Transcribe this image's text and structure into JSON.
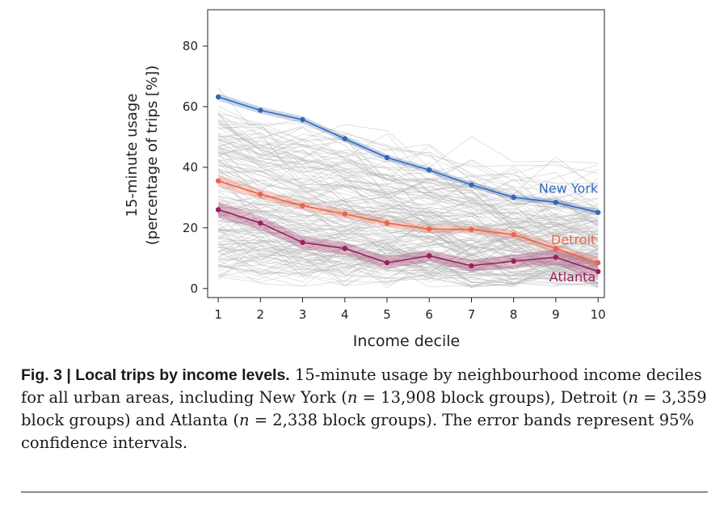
{
  "chart_data": {
    "type": "line",
    "xlabel": "Income decile",
    "ylabel_line1": "15-minute usage",
    "ylabel_line2": "(percentage of trips [%])",
    "xlim": [
      0.75,
      10.15
    ],
    "ylim": [
      -3,
      92
    ],
    "x_ticks": [
      1,
      2,
      3,
      4,
      5,
      6,
      7,
      8,
      9,
      10
    ],
    "y_ticks": [
      0,
      20,
      40,
      60,
      80
    ],
    "grid": false,
    "background_lines": "grey lines for all urban areas",
    "series": [
      {
        "name": "New York",
        "color": "#3569b6",
        "x": [
          1,
          2,
          3,
          4,
          5,
          6,
          7,
          8,
          9,
          10
        ],
        "values": [
          63.2,
          58.8,
          55.7,
          49.4,
          43.2,
          39.1,
          34.2,
          30.1,
          28.4,
          25.1
        ],
        "ci_halfwidth": [
          1.2,
          1.1,
          1.1,
          1.0,
          1.0,
          1.0,
          1.0,
          1.0,
          1.0,
          1.1
        ]
      },
      {
        "name": "Detroit",
        "color": "#e8654b",
        "x": [
          1,
          2,
          3,
          4,
          5,
          6,
          7,
          8,
          9,
          10
        ],
        "values": [
          35.5,
          31.1,
          27.3,
          24.6,
          21.6,
          19.6,
          19.5,
          17.8,
          13.2,
          8.5
        ],
        "ci_halfwidth": [
          2.0,
          1.6,
          1.5,
          1.4,
          1.4,
          1.4,
          1.4,
          1.5,
          1.6,
          1.8
        ]
      },
      {
        "name": "Atlanta",
        "color": "#9b1f5c",
        "x": [
          1,
          2,
          3,
          4,
          5,
          6,
          7,
          8,
          9,
          10
        ],
        "values": [
          26.0,
          21.6,
          15.2,
          13.2,
          8.5,
          10.8,
          7.5,
          9.0,
          10.3,
          5.6
        ],
        "ci_halfwidth": [
          2.5,
          2.3,
          2.2,
          2.1,
          2.0,
          2.0,
          2.0,
          2.2,
          2.5,
          2.8
        ]
      }
    ]
  },
  "caption": {
    "label": "Fig. 3 | Local trips by income levels.",
    "text_1": " 15-minute usage by neighbourhood income deciles for all urban areas, including New York (",
    "n": "n",
    "text_2": " = 13,908 block groups), Detroit (",
    "text_3": " = 3,359 block groups) and Atlanta (",
    "text_4": " = 2,338 block groups). The error bands represent 95% confidence intervals."
  }
}
